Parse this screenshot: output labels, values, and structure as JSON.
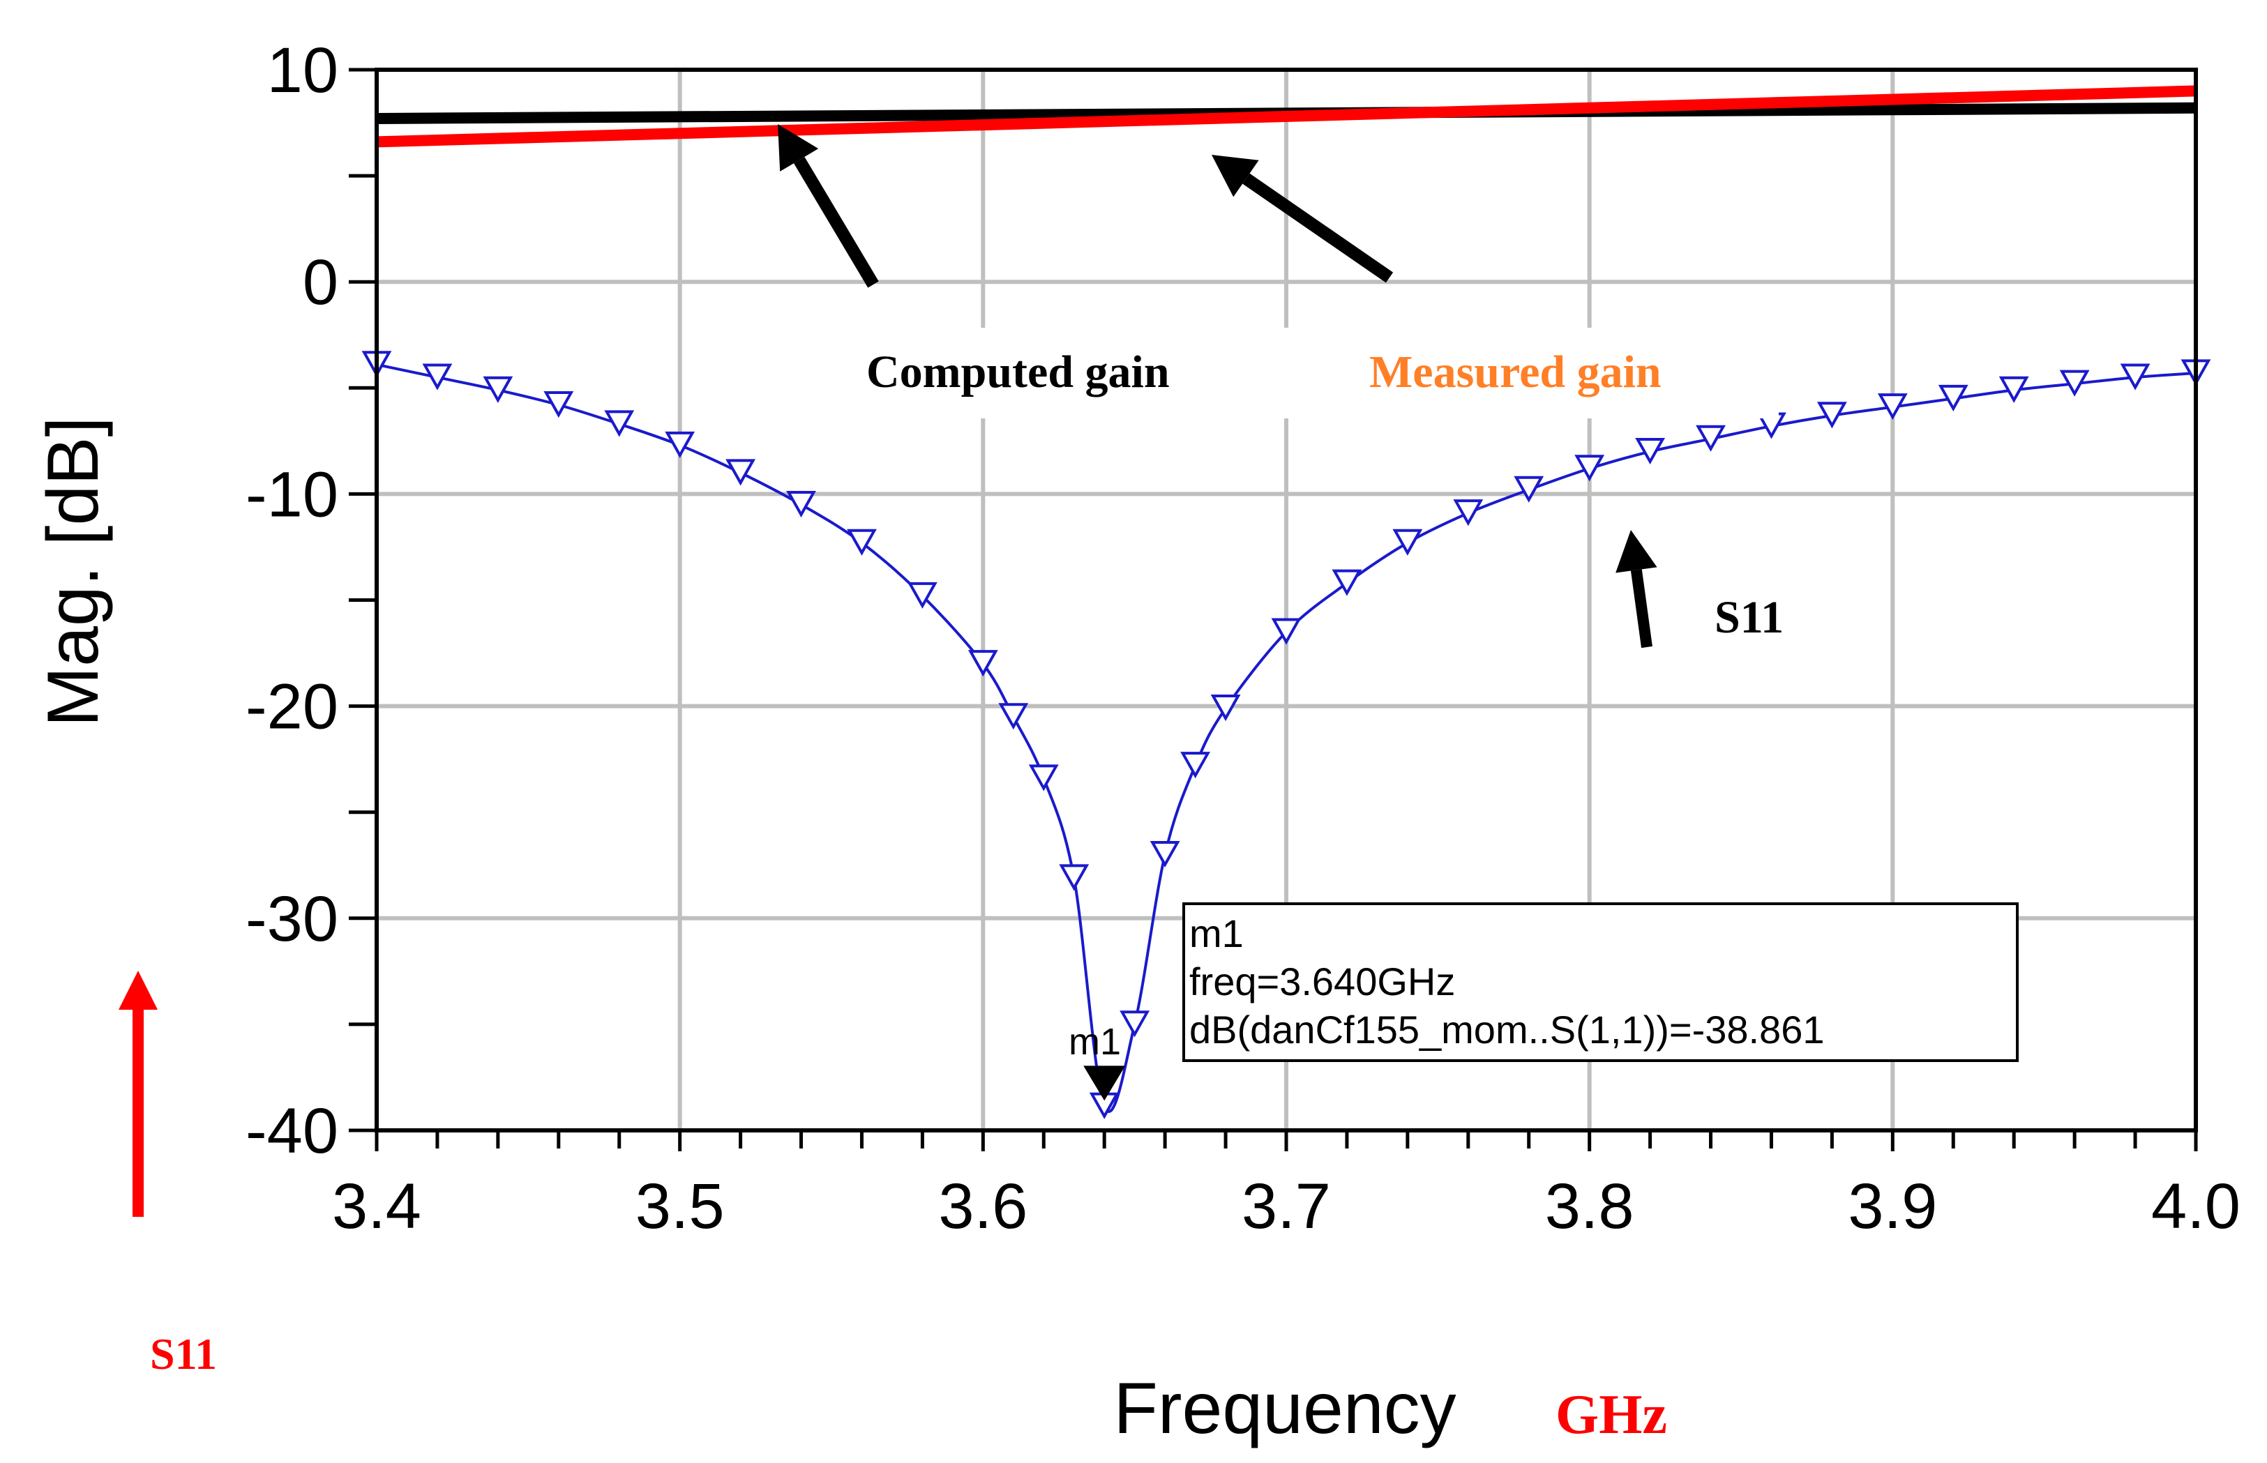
{
  "chart_data": {
    "type": "line",
    "xlabel": "Frequency",
    "xlabel_unit": "GHz",
    "ylabel": "Mag. [dB]",
    "xlim": [
      3.4,
      4.0
    ],
    "ylim": [
      -40,
      10
    ],
    "x_ticks": [
      "3.4",
      "3.5",
      "3.6",
      "3.7",
      "3.8",
      "3.9",
      "4.0"
    ],
    "y_ticks": [
      "10",
      "0",
      "-10",
      "-20",
      "-30",
      "-40"
    ],
    "grid": true,
    "series": [
      {
        "name": "Computed gain",
        "color": "#000000",
        "x": [
          3.4,
          4.0
        ],
        "y": [
          7.7,
          8.2
        ]
      },
      {
        "name": "Measured gain",
        "color": "#ff0000",
        "x": [
          3.4,
          4.0
        ],
        "y": [
          6.6,
          9.0
        ]
      },
      {
        "name": "S11",
        "color": "#1a1acc",
        "marker": "triangle-down",
        "x": [
          3.4,
          3.42,
          3.44,
          3.46,
          3.48,
          3.5,
          3.52,
          3.54,
          3.56,
          3.58,
          3.6,
          3.61,
          3.62,
          3.63,
          3.64,
          3.65,
          3.66,
          3.67,
          3.68,
          3.7,
          3.72,
          3.74,
          3.76,
          3.78,
          3.8,
          3.82,
          3.84,
          3.86,
          3.88,
          3.9,
          3.92,
          3.94,
          3.96,
          3.98,
          4.0
        ],
        "y": [
          -3.9,
          -4.5,
          -5.1,
          -5.8,
          -6.7,
          -7.7,
          -9.0,
          -10.5,
          -12.3,
          -14.8,
          -18.0,
          -20.5,
          -23.4,
          -28.1,
          -38.861,
          -35.0,
          -27.0,
          -22.8,
          -20.1,
          -16.5,
          -14.2,
          -12.3,
          -10.9,
          -9.8,
          -8.8,
          -8.0,
          -7.4,
          -6.8,
          -6.3,
          -5.9,
          -5.5,
          -5.1,
          -4.8,
          -4.5,
          -4.3
        ]
      }
    ],
    "annotations": {
      "computed_label": "Computed gain",
      "measured_label": "Measured gain",
      "s11_label": "S11",
      "s11_red_label": "S11"
    },
    "marker": {
      "name": "m1",
      "x": 3.64,
      "y": -38.861,
      "lines": [
        "m1",
        "freq=3.640GHz",
        "dB(danCf155_mom..S(1,1))=-38.861"
      ]
    }
  },
  "colors": {
    "axis": "#000000",
    "grid": "#bfbfbf",
    "computed": "#000000",
    "measured": "#ff0000",
    "s11": "#1a1acc",
    "measured_label": "#ff7f27",
    "red_text": "#ff0000"
  }
}
